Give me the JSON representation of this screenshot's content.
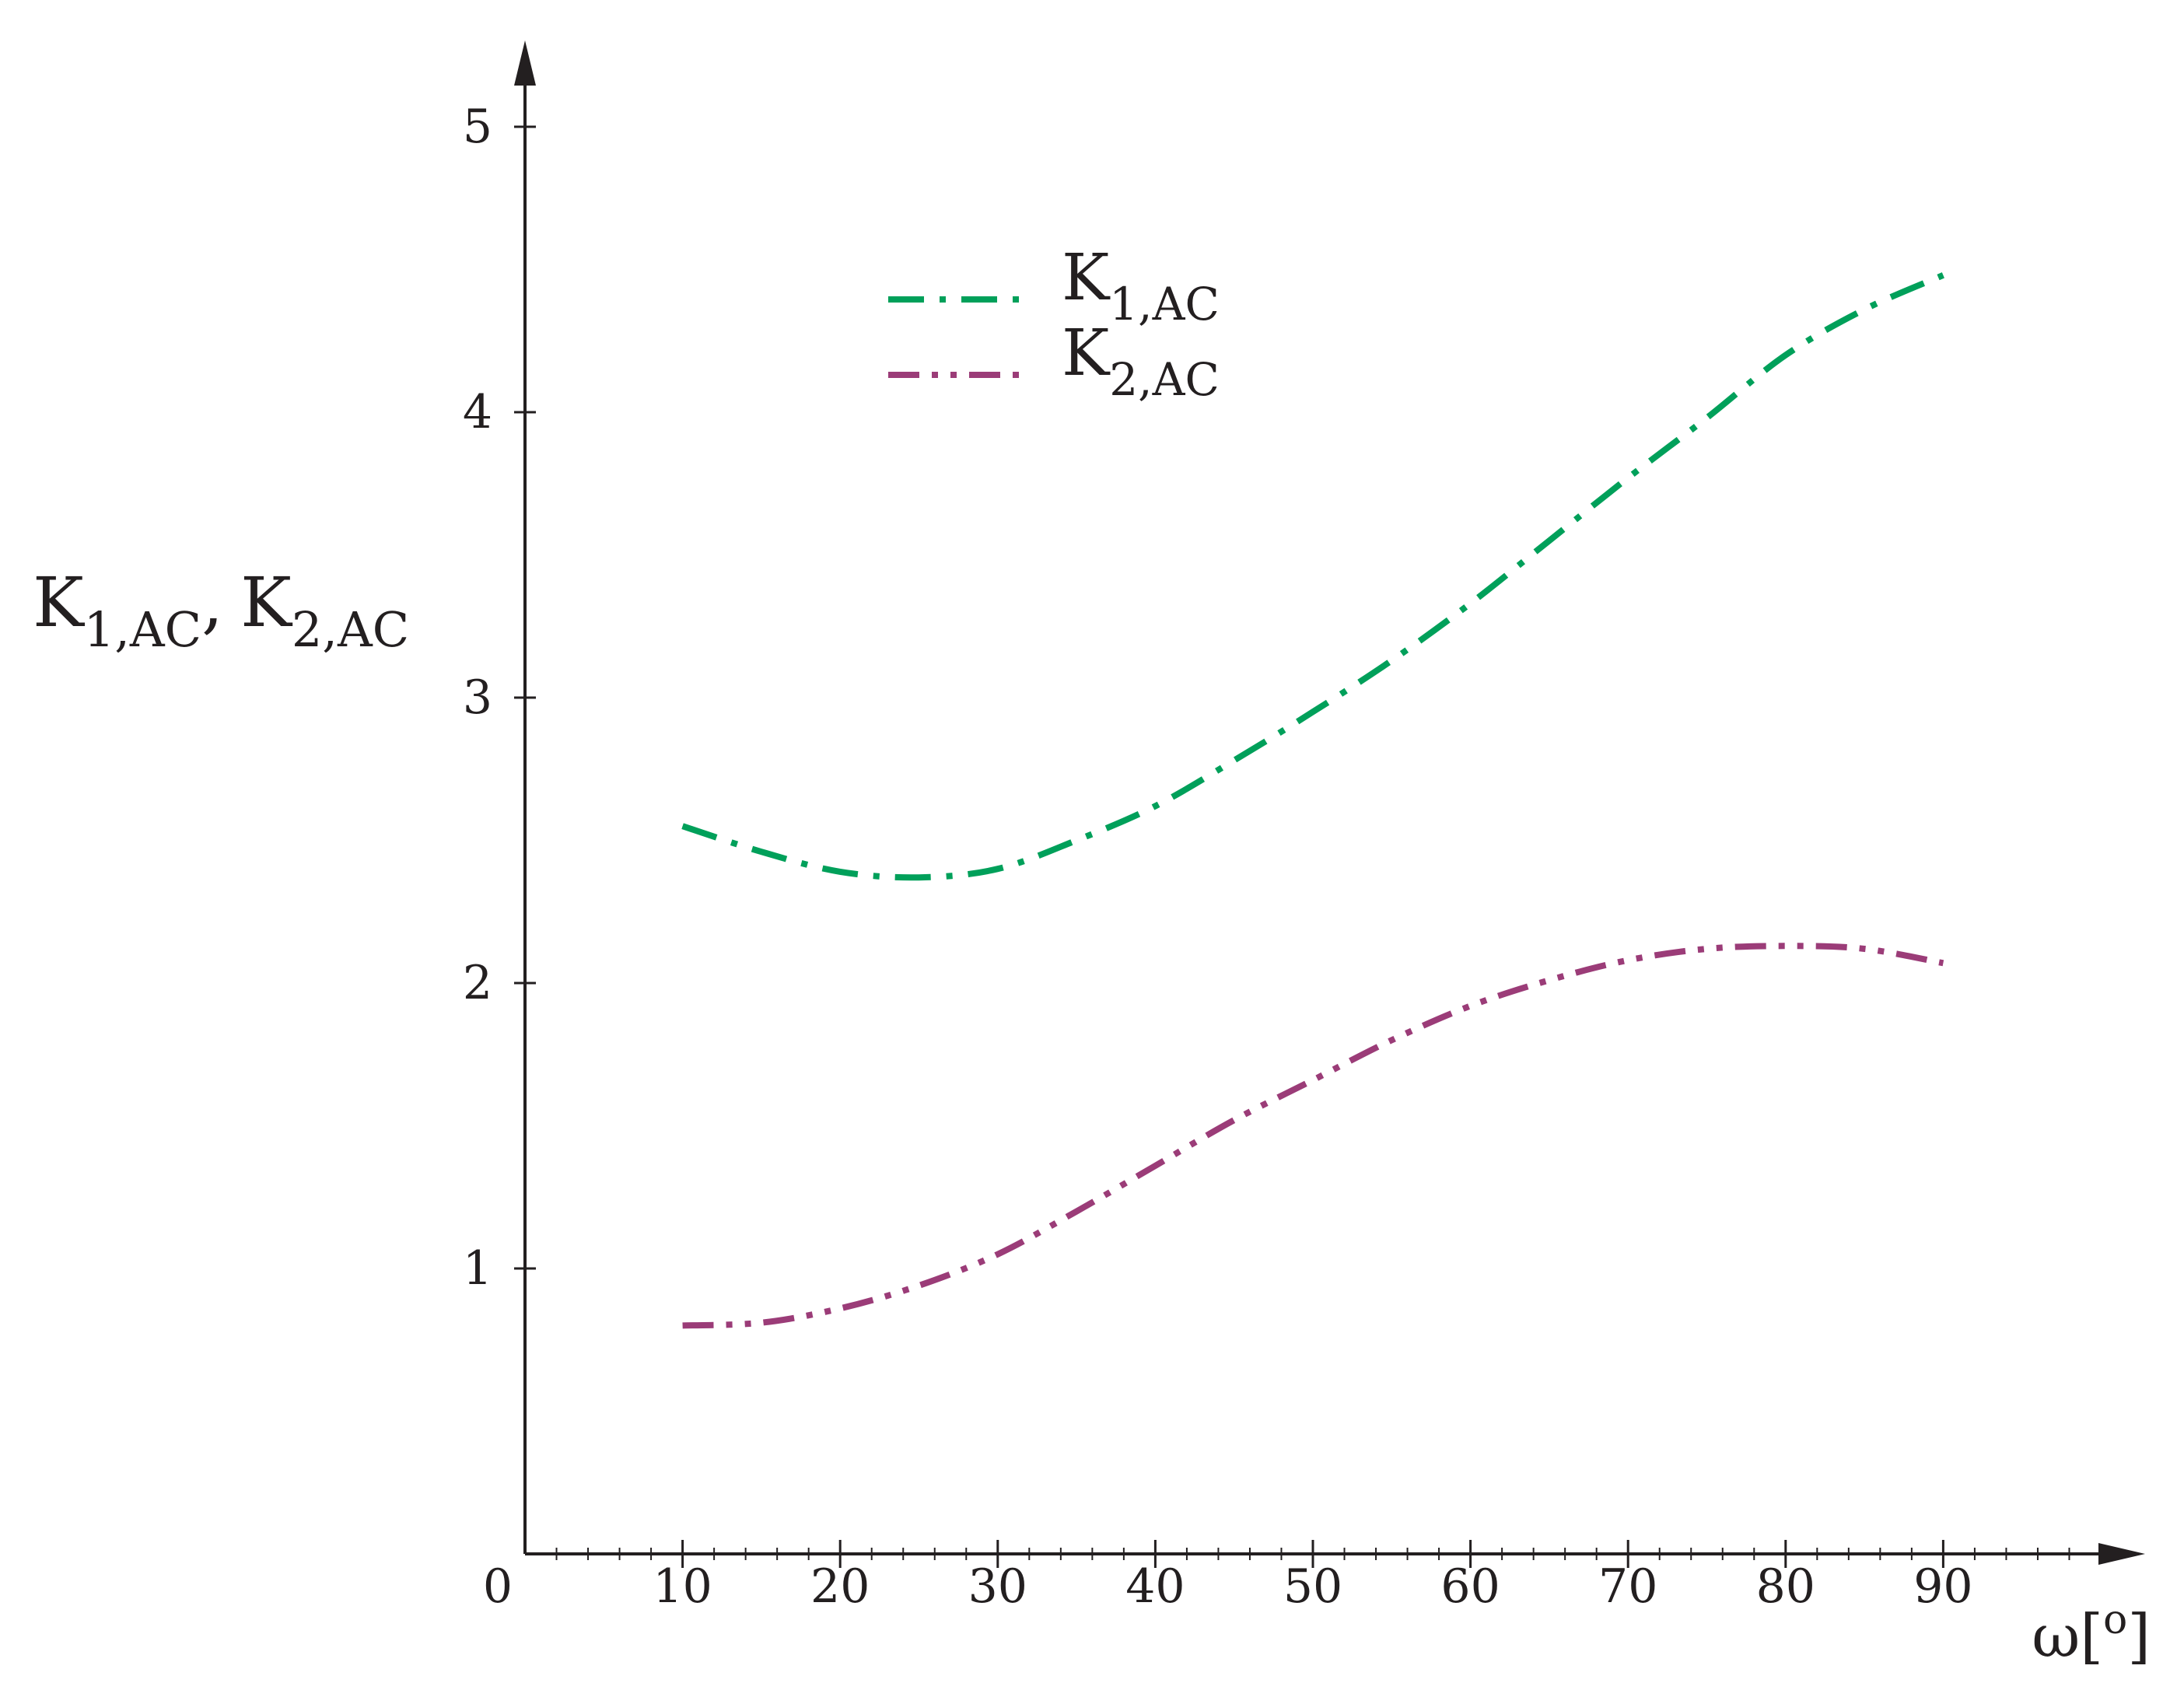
{
  "colors": {
    "axis": "#231f20",
    "series_1": "#00a05a",
    "series_2": "#9b3c78"
  },
  "chart_data": {
    "type": "line",
    "title": "",
    "xlabel": {
      "main": "ω",
      "bracket_open": "[",
      "unit": "o",
      "bracket_close": "]"
    },
    "ylabel": {
      "k1_main": "K",
      "k1_sub": "1,AC",
      "separator": ",",
      "k2_main": "K",
      "k2_sub": "2,AC"
    },
    "xlim": [
      0,
      100
    ],
    "ylim": [
      0,
      5
    ],
    "origin_label": "0",
    "x_ticks": [
      {
        "value": 10,
        "label": "10"
      },
      {
        "value": 20,
        "label": "20"
      },
      {
        "value": 30,
        "label": "30"
      },
      {
        "value": 40,
        "label": "40"
      },
      {
        "value": 50,
        "label": "50"
      },
      {
        "value": 60,
        "label": "60"
      },
      {
        "value": 70,
        "label": "70"
      },
      {
        "value": 80,
        "label": "80"
      },
      {
        "value": 90,
        "label": "90"
      }
    ],
    "y_ticks": [
      {
        "value": 1,
        "label": "1"
      },
      {
        "value": 2,
        "label": "2"
      },
      {
        "value": 3,
        "label": "3"
      },
      {
        "value": 4,
        "label": "4"
      },
      {
        "value": 5,
        "label": "5"
      }
    ],
    "legend_position": "top-center",
    "grid": false,
    "series": [
      {
        "name_main": "K",
        "name_sub": "1,AC",
        "color": "#00a05a",
        "dash": "dash-dot",
        "x": [
          10,
          15,
          20,
          25,
          30,
          35,
          40,
          45,
          50,
          55,
          60,
          65,
          70,
          75,
          80,
          85,
          90
        ],
        "y": [
          2.55,
          2.46,
          2.39,
          2.37,
          2.4,
          2.5,
          2.62,
          2.78,
          2.95,
          3.13,
          3.33,
          3.55,
          3.77,
          3.98,
          4.2,
          4.36,
          4.48
        ]
      },
      {
        "name_main": "K",
        "name_sub": "2,AC",
        "color": "#9b3c78",
        "dash": "dash-dot-dot",
        "x": [
          10,
          15,
          20,
          25,
          30,
          35,
          40,
          45,
          50,
          55,
          60,
          65,
          70,
          75,
          80,
          85,
          90
        ],
        "y": [
          0.8,
          0.81,
          0.86,
          0.94,
          1.05,
          1.2,
          1.36,
          1.52,
          1.66,
          1.8,
          1.92,
          2.01,
          2.08,
          2.12,
          2.13,
          2.12,
          2.07
        ]
      }
    ]
  }
}
